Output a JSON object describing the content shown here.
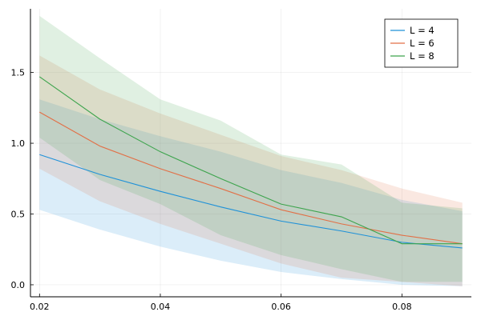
{
  "chart_data": {
    "type": "line",
    "title": "",
    "xlabel": "",
    "ylabel": "",
    "xlim": [
      0.0185,
      0.0915
    ],
    "ylim": [
      -0.085,
      1.95
    ],
    "grid": true,
    "legend_position": "top-right",
    "x": [
      0.02,
      0.03,
      0.04,
      0.05,
      0.06,
      0.07,
      0.08,
      0.09
    ],
    "x_ticks": [
      0.02,
      0.04,
      0.06,
      0.08
    ],
    "x_tick_labels": [
      "0.02",
      "0.04",
      "0.06",
      "0.08"
    ],
    "y_ticks": [
      0.0,
      0.5,
      1.0,
      1.5
    ],
    "y_tick_labels": [
      "0.0",
      "0.5",
      "1.0",
      "1.5"
    ],
    "series": [
      {
        "name": "L = 4",
        "color": "#1f91d8",
        "values": [
          0.92,
          0.78,
          0.66,
          0.55,
          0.45,
          0.38,
          0.3,
          0.26
        ],
        "lower": [
          0.53,
          0.39,
          0.27,
          0.17,
          0.09,
          0.04,
          0.0,
          -0.01
        ],
        "upper": [
          1.31,
          1.17,
          1.05,
          0.94,
          0.81,
          0.72,
          0.6,
          0.52
        ]
      },
      {
        "name": "L = 6",
        "color": "#e26f46",
        "values": [
          1.22,
          0.98,
          0.82,
          0.68,
          0.53,
          0.43,
          0.35,
          0.29
        ],
        "lower": [
          0.82,
          0.59,
          0.43,
          0.29,
          0.15,
          0.05,
          0.02,
          -0.01
        ],
        "upper": [
          1.62,
          1.38,
          1.21,
          1.06,
          0.91,
          0.81,
          0.68,
          0.58
        ]
      },
      {
        "name": "L = 8",
        "color": "#3da44d",
        "values": [
          1.47,
          1.17,
          0.94,
          0.75,
          0.57,
          0.48,
          0.29,
          0.29
        ],
        "lower": [
          1.04,
          0.74,
          0.57,
          0.35,
          0.21,
          0.11,
          0.02,
          0.02
        ],
        "upper": [
          1.9,
          1.6,
          1.31,
          1.16,
          0.92,
          0.85,
          0.58,
          0.54
        ]
      }
    ]
  }
}
